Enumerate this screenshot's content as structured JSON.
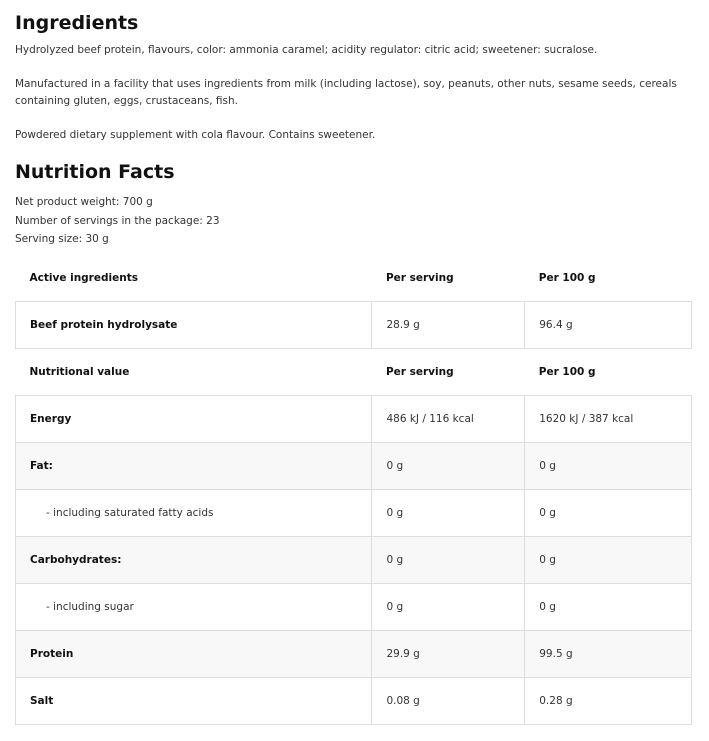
{
  "ingredients": {
    "title": "Ingredients",
    "paragraphs": [
      "Hydrolyzed beef protein, flavours, color: ammonia caramel; acidity regulator: citric acid; sweetener: sucralose.",
      "Manufactured in a facility that uses ingredients from milk (including lactose), soy, peanuts, other nuts, sesame seeds, cereals containing gluten, eggs, crustaceans, fish.",
      "Powdered dietary supplement with cola flavour. Contains sweetener."
    ]
  },
  "nutrition": {
    "title": "Nutrition Facts",
    "info": [
      "Net product weight: 700 g",
      "Number of servings in the package: 23",
      "Serving size: 30 g"
    ],
    "active_header": [
      "Active ingredients",
      "Per serving",
      "Per 100 g"
    ],
    "active_rows": [
      [
        "Beef protein hydrolysate",
        "28.9 g",
        "96.4 g"
      ]
    ],
    "nutritional_header": [
      "Nutritional value",
      "Per serving",
      "Per 100 g"
    ],
    "nutritional_rows": [
      [
        "Energy",
        "486 kJ / 116 kcal",
        "1620 kJ / 387 kcal"
      ],
      [
        "Fat:",
        "0 g",
        "0 g"
      ],
      [
        "- including saturated fatty acids",
        "0 g",
        "0 g"
      ],
      [
        "Carbohydrates:",
        "0 g",
        "0 g"
      ],
      [
        "- including sugar",
        "0 g",
        "0 g"
      ],
      [
        "Protein",
        "29.9 g",
        "99.5 g"
      ],
      [
        "Salt",
        "0.08 g",
        "0.28 g"
      ]
    ]
  }
}
